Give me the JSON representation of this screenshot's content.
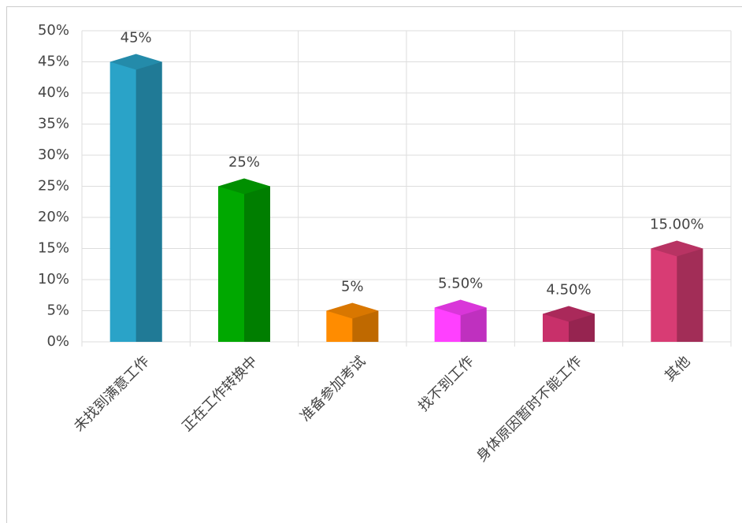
{
  "chart_data": {
    "type": "bar",
    "categories": [
      "未找到满意工作",
      "正在工作转换中",
      "准备参加考试",
      "找不到工作",
      "身体原因暂时不能工作",
      "其他"
    ],
    "values": [
      45,
      25,
      5,
      5.5,
      4.5,
      15
    ],
    "value_labels": [
      "45%",
      "25%",
      "5%",
      "5.50%",
      "4.50%",
      "15.00%"
    ],
    "colors": [
      "#2aa3c8",
      "#00a800",
      "#ff8c00",
      "#ff40ff",
      "#c8306a",
      "#d83c74"
    ],
    "ylim": [
      0,
      50
    ],
    "yticks": [
      {
        "value": 0,
        "label": "0%"
      },
      {
        "value": 5,
        "label": "5%"
      },
      {
        "value": 10,
        "label": "10%"
      },
      {
        "value": 15,
        "label": "15%"
      },
      {
        "value": 20,
        "label": "20%"
      },
      {
        "value": 25,
        "label": "25%"
      },
      {
        "value": 30,
        "label": "30%"
      },
      {
        "value": 35,
        "label": "35%"
      },
      {
        "value": 40,
        "label": "40%"
      },
      {
        "value": 45,
        "label": "45%"
      },
      {
        "value": 50,
        "label": "50%"
      }
    ],
    "grid": true
  }
}
